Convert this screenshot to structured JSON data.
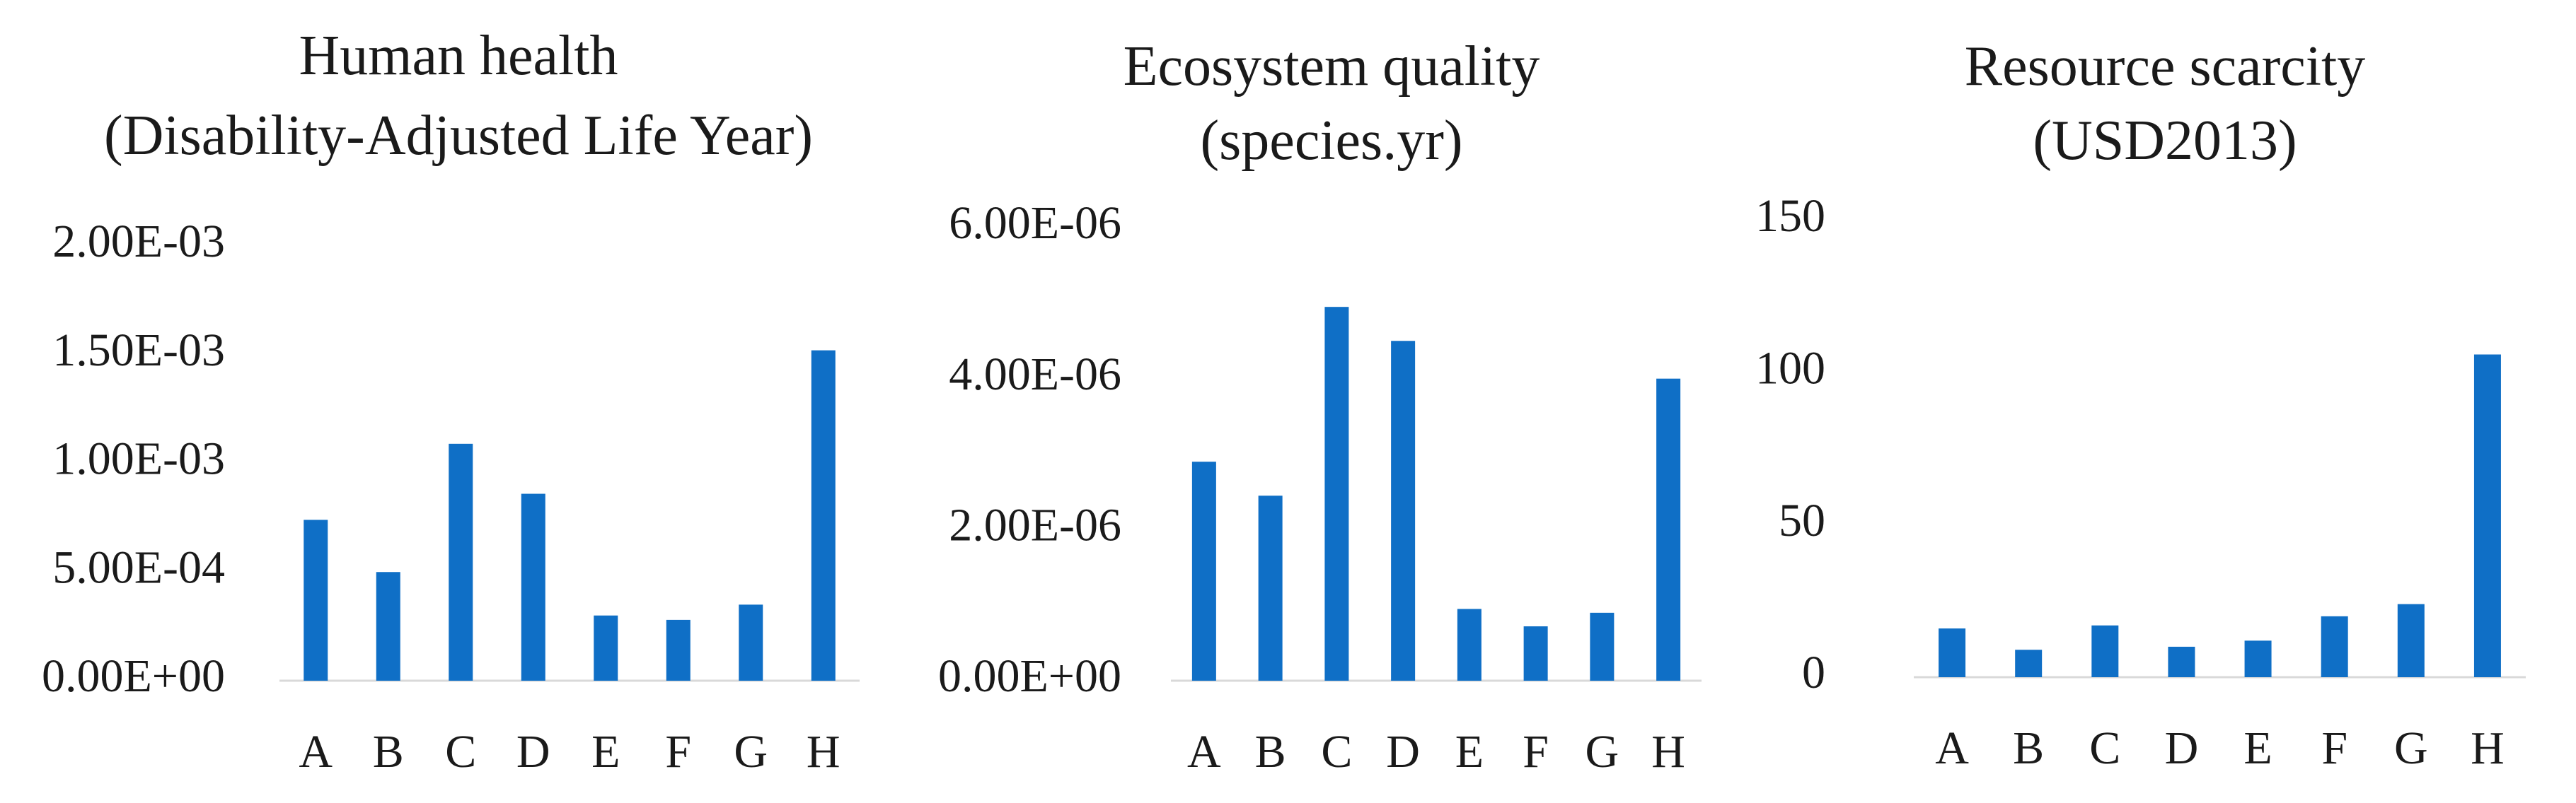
{
  "chart_data": [
    {
      "type": "bar",
      "title": "Human health",
      "subtitle": "(Disability-Adjusted Life Year)",
      "xlabel": "",
      "ylabel": "",
      "categories": [
        "A",
        "B",
        "C",
        "D",
        "E",
        "F",
        "G",
        "H"
      ],
      "values": [
        0.00074,
        0.0005,
        0.00109,
        0.00086,
        0.0003,
        0.00028,
        0.00035,
        0.00152
      ],
      "ylim": [
        0,
        0.002
      ],
      "yticks": [
        0,
        0.0005,
        0.001,
        0.0015,
        0.002
      ],
      "ytick_labels": [
        "0.00E+00",
        "5.00E-04",
        "1.00E-03",
        "1.50E-03",
        "2.00E-03"
      ],
      "grid": false,
      "legend": "none",
      "color": "#0f6fc6"
    },
    {
      "type": "bar",
      "title": "Ecosystem quality",
      "subtitle": "(species.yr)",
      "xlabel": "",
      "ylabel": "",
      "categories": [
        "A",
        "B",
        "C",
        "D",
        "E",
        "F",
        "G",
        "H"
      ],
      "values": [
        2.9e-06,
        2.45e-06,
        4.95e-06,
        4.5e-06,
        9.5e-07,
        7.2e-07,
        9e-07,
        4e-06
      ],
      "ylim": [
        0,
        6e-06
      ],
      "yticks": [
        0,
        2e-06,
        4e-06,
        6e-06
      ],
      "ytick_labels": [
        "0.00E+00",
        "2.00E-06",
        "4.00E-06",
        "6.00E-06"
      ],
      "grid": false,
      "legend": "none",
      "color": "#0f6fc6"
    },
    {
      "type": "bar",
      "title": "Resource scarcity",
      "subtitle": "(USD2013)",
      "xlabel": "",
      "ylabel": "",
      "categories": [
        "A",
        "B",
        "C",
        "D",
        "E",
        "F",
        "G",
        "H"
      ],
      "values": [
        16,
        9,
        17,
        10,
        12,
        20,
        24,
        106
      ],
      "ylim": [
        0,
        150
      ],
      "yticks": [
        0,
        50,
        100,
        150
      ],
      "ytick_labels": [
        "0",
        "50",
        "100",
        "150"
      ],
      "grid": false,
      "legend": "none",
      "color": "#0f6fc6"
    }
  ]
}
